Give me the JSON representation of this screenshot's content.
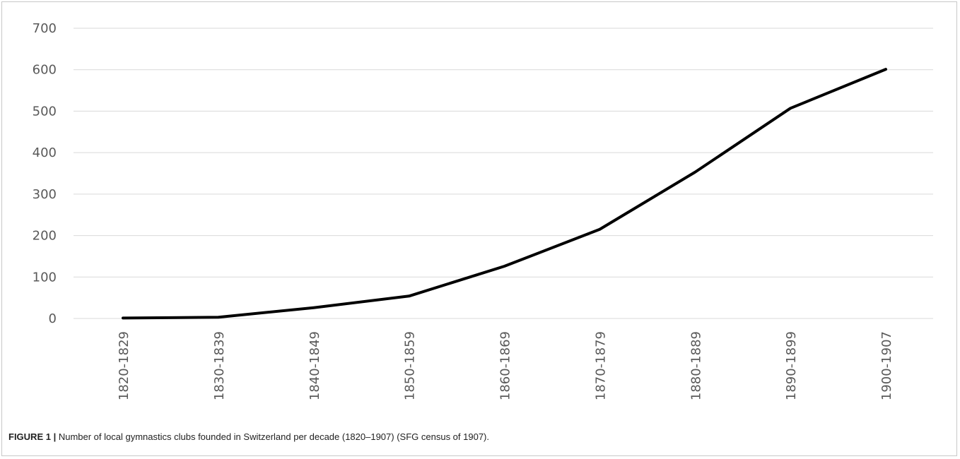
{
  "figure": {
    "label": "FIGURE 1 |",
    "caption": "Number of local gymnastics clubs founded in Switzerland per decade (1820–1907) (SFG census of 1907)."
  },
  "chart_data": {
    "type": "line",
    "title": "",
    "xlabel": "",
    "ylabel": "",
    "categories": [
      "1820-1829",
      "1830-1839",
      "1840-1849",
      "1850-1859",
      "1860-1869",
      "1870-1879",
      "1880-1889",
      "1890-1899",
      "1900-1907"
    ],
    "values": [
      1,
      3,
      26,
      54,
      126,
      215,
      353,
      507,
      601
    ],
    "ylim": [
      0,
      700
    ],
    "yticks": [
      0,
      100,
      200,
      300,
      400,
      500,
      600,
      700
    ],
    "grid": true,
    "legend": "none",
    "line_color": "#000000",
    "grid_color": "#d9d9d9"
  }
}
